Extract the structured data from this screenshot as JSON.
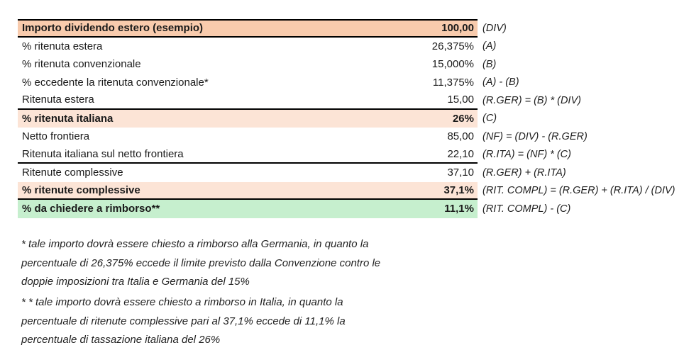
{
  "colors": {
    "highlight_strong_peach": "#F8CBAD",
    "highlight_light_peach": "#FCE4D6",
    "highlight_green": "#C6EFCE",
    "table_border": "#000000",
    "background": "#FFFFFF",
    "text": "#1A1A1A"
  },
  "table": {
    "rows": [
      {
        "label": "Importo dividendo estero (esempio)",
        "value": "100,00",
        "formula": "(DIV)"
      },
      {
        "label": "% ritenuta estera",
        "value": "26,375%",
        "formula": "(A)"
      },
      {
        "label": "% ritenuta convenzionale",
        "value": "15,000%",
        "formula": "(B)"
      },
      {
        "label": "% eccedente la ritenuta convenzionale*",
        "value": "11,375%",
        "formula": "(A) - (B)"
      },
      {
        "label": "Ritenuta estera",
        "value": "15,00",
        "formula": "(R.GER) = (B) * (DIV)"
      },
      {
        "label": "% ritenuta italiana",
        "value": "26%",
        "formula": "(C)"
      },
      {
        "label": "Netto frontiera",
        "value": "85,00",
        "formula": "(NF) = (DIV) - (R.GER)"
      },
      {
        "label": "Ritenuta italiana sul netto frontiera",
        "value": "22,10",
        "formula": "(R.ITA) = (NF) * (C)"
      },
      {
        "label": "Ritenute complessive",
        "value": "37,10",
        "formula": "(R.GER) + (R.ITA)"
      },
      {
        "label": "% ritenute complessive",
        "value": "37,1%",
        "formula": "(RIT. COMPL) = (R.GER) + (R.ITA) / (DIV)"
      },
      {
        "label": "% da chiedere a rimborso**",
        "value": "11,1%",
        "formula": "(RIT. COMPL) - (C)"
      }
    ]
  },
  "footnotes": {
    "note1": {
      "lines": [
        "* tale importo dovrà essere chiesto a rimborso alla Germania, in quanto la",
        "percentuale di 26,375% eccede il limite previsto dalla Convenzione contro le",
        "doppie imposizioni tra Italia e Germania del 15%"
      ]
    },
    "note2": {
      "lines": [
        "* * tale importo dovrà essere chiesto a rimborso in Italia, in quanto la",
        "percentuale di ritenute complessive pari al 37,1% eccede di 11,1% la",
        "percentuale di tassazione italiana del 26%"
      ]
    }
  }
}
